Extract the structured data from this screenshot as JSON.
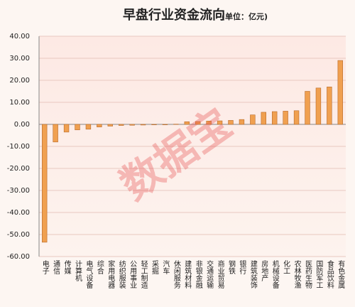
{
  "chart_data": {
    "type": "bar",
    "title": "早盘行业资金流向",
    "subtitle": "(单位：亿元)",
    "watermark": "数据宝",
    "categories": [
      "电子",
      "通信",
      "传媒",
      "计算机",
      "电气设备",
      "综合",
      "家用电器",
      "纺织服装",
      "公用事业",
      "轻工制造",
      "采掘",
      "汽车",
      "休闲服务",
      "建筑材料",
      "非银金融",
      "交通运输",
      "商业贸易",
      "钢铁",
      "银行",
      "建筑装饰",
      "房地产",
      "机械设备",
      "化工",
      "农林牧渔",
      "医药生物",
      "国防军工",
      "食品饮料",
      "有色金属"
    ],
    "values": [
      -53.5,
      -8,
      -3.5,
      -2.5,
      -2.2,
      -1.2,
      -0.8,
      -0.5,
      -0.4,
      -0.3,
      -0.2,
      -0.2,
      0.1,
      1.2,
      1.3,
      1.5,
      1.6,
      1.8,
      2.2,
      4.3,
      5.5,
      5.8,
      6.0,
      6.2,
      15,
      16.5,
      17,
      29
    ],
    "color": "#f0a050",
    "ylim": [
      -60,
      40
    ],
    "yticks": [
      {
        "value": -60,
        "label": "-60.00"
      },
      {
        "value": -50,
        "label": "-50.00"
      },
      {
        "value": -40,
        "label": "-40.00"
      },
      {
        "value": -30,
        "label": "-30.00"
      },
      {
        "value": -20,
        "label": "-20.00"
      },
      {
        "value": -10,
        "label": "-10.00"
      },
      {
        "value": 0,
        "label": "0.00"
      },
      {
        "value": 10,
        "label": "10.00"
      },
      {
        "value": 20,
        "label": "20.00"
      },
      {
        "value": 30,
        "label": "30.00"
      },
      {
        "value": 40,
        "label": "40.00"
      }
    ],
    "grid": true
  }
}
